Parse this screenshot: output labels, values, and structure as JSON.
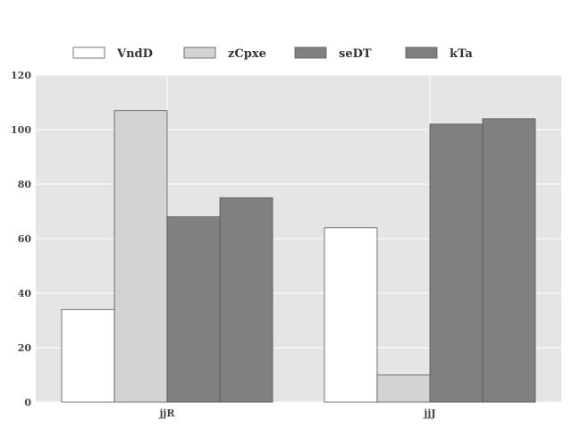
{
  "chart_data": {
    "type": "bar",
    "categories": [
      "jjR",
      "jjJ"
    ],
    "series": [
      {
        "name": "VndD",
        "values": [
          34,
          64
        ],
        "color": "#ffffff"
      },
      {
        "name": "zCpxe",
        "values": [
          107,
          10
        ],
        "color": "#d3d3d3"
      },
      {
        "name": "seDT",
        "values": [
          68,
          102
        ],
        "color": "#808080"
      },
      {
        "name": "kTa",
        "values": [
          75,
          104
        ],
        "color": "#808080"
      }
    ],
    "yticks": [
      0,
      20,
      40,
      60,
      80,
      100,
      120
    ],
    "ylim": [
      0,
      120
    ],
    "grid": true,
    "legend_position": "top",
    "colors": {
      "plot_background": "#e5e5e5",
      "grid": "#ffffff",
      "bar_edge": "#555555"
    }
  }
}
